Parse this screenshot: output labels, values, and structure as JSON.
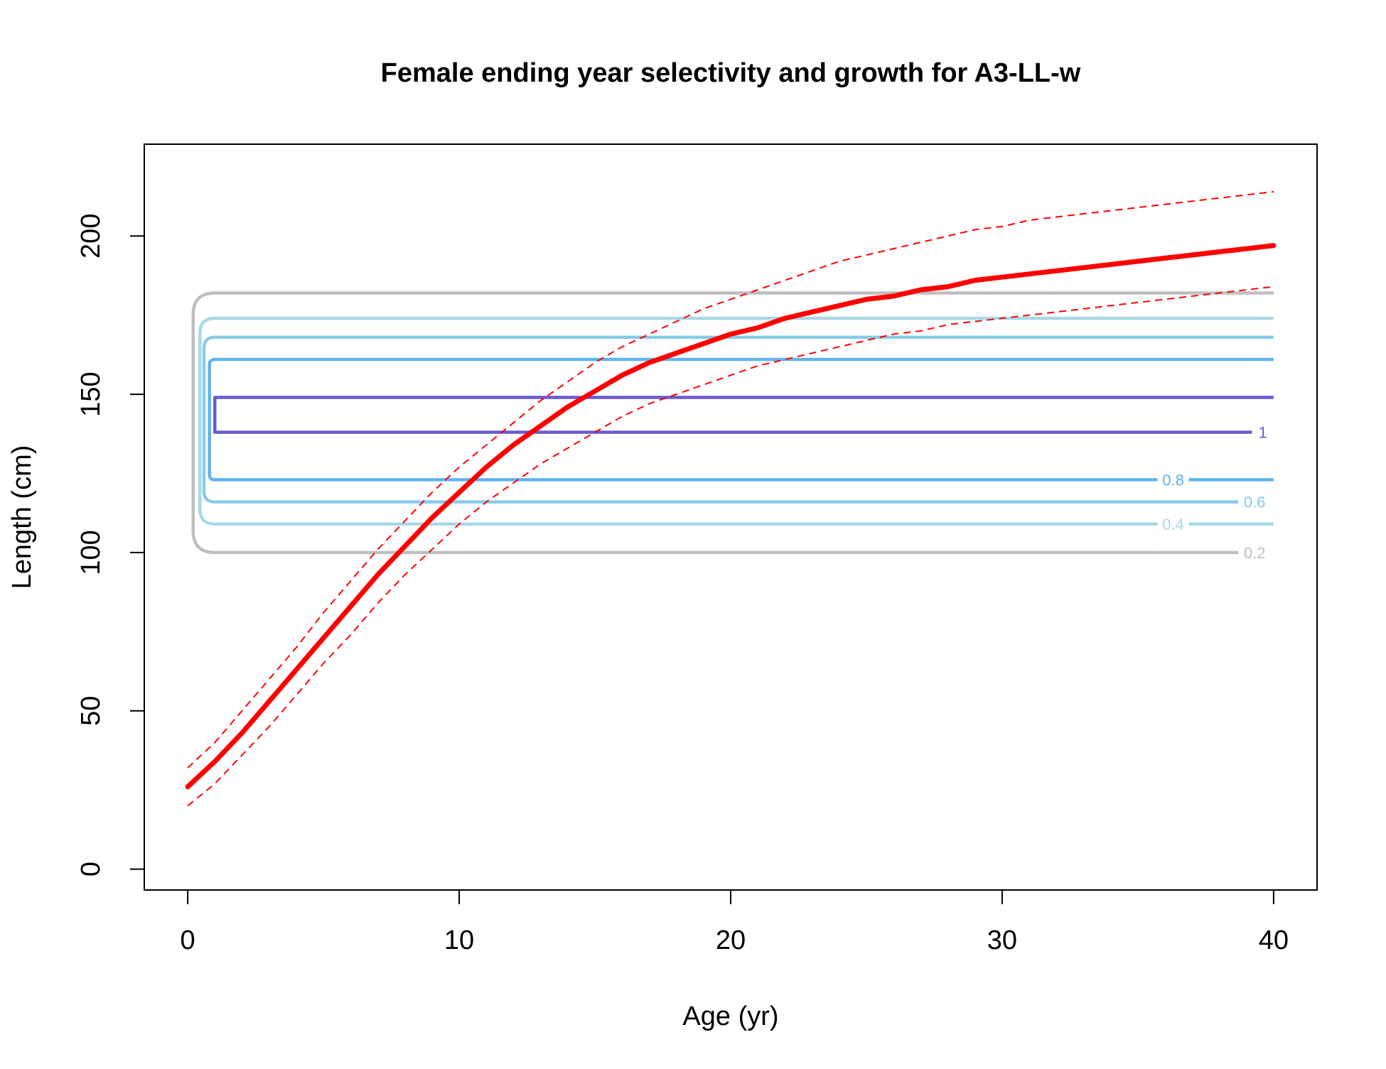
{
  "chart_data": {
    "type": "line",
    "title": "Female ending year selectivity and growth for A3-LL-w",
    "xlabel": "Age (yr)",
    "ylabel": "Length (cm)",
    "xlim": [
      -1.6,
      41.6
    ],
    "ylim": [
      -6.6,
      229
    ],
    "xticks": [
      0,
      10,
      20,
      30,
      40
    ],
    "yticks": [
      0,
      50,
      100,
      150,
      200
    ],
    "grid": false,
    "legend": "none",
    "growth": {
      "color": "#ff0000",
      "x": [
        0,
        1,
        2,
        3,
        4,
        5,
        6,
        7,
        8,
        9,
        10,
        11,
        12,
        13,
        14,
        15,
        16,
        17,
        18,
        19,
        20,
        21,
        22,
        23,
        24,
        25,
        26,
        27,
        28,
        29,
        30,
        31,
        32,
        33,
        34,
        35,
        36,
        37,
        38,
        39,
        40
      ],
      "mean": [
        26,
        34,
        43,
        53,
        63,
        73,
        83,
        93,
        102,
        111,
        119,
        127,
        134,
        140,
        146,
        151,
        156,
        160,
        163,
        166,
        169,
        171,
        174,
        176,
        178,
        180,
        181,
        183,
        184,
        186,
        187,
        188,
        189,
        190,
        191,
        192,
        193,
        194,
        195,
        196,
        197
      ],
      "upper": [
        32,
        40,
        50,
        60,
        70,
        81,
        91,
        101,
        110,
        119,
        127,
        134,
        141,
        148,
        154,
        160,
        165,
        169,
        173,
        177,
        180,
        183,
        186,
        189,
        192,
        194,
        196,
        198,
        200,
        202,
        203,
        205,
        206,
        207,
        208,
        209,
        210,
        211,
        212,
        213,
        214
      ],
      "lower": [
        20,
        27,
        36,
        45,
        55,
        65,
        74,
        84,
        93,
        101,
        109,
        116,
        122,
        128,
        133,
        138,
        143,
        147,
        150,
        153,
        156,
        159,
        161,
        163,
        165,
        167,
        169,
        170,
        172,
        173,
        174,
        175,
        176,
        177,
        178,
        179,
        180,
        181,
        182,
        183,
        184
      ]
    },
    "contours": [
      {
        "level": "0.2",
        "color": "#bebebe",
        "top": 182,
        "bottom": 100,
        "age_start": 1,
        "x_left": 0.2,
        "top_end": 40,
        "bottom_end": 38.7,
        "label_y": 100,
        "label_x": 39.3
      },
      {
        "level": "0.4",
        "color": "#a8d8e6",
        "top": 174,
        "bottom": 109,
        "age_start": 1,
        "x_left": 0.45,
        "top_end": 40,
        "bottom_end": 40,
        "label_y": 109,
        "label_x": 36.3
      },
      {
        "level": "0.6",
        "color": "#87cbea",
        "top": 168,
        "bottom": 116,
        "age_start": 1,
        "x_left": 0.6,
        "top_end": 40,
        "bottom_end": 38.7,
        "label_y": 116,
        "label_x": 39.3
      },
      {
        "level": "0.8",
        "color": "#5fb4f0",
        "top": 161,
        "bottom": 123,
        "age_start": 1,
        "x_left": 0.8,
        "top_end": 40,
        "bottom_end": 40,
        "label_y": 123,
        "label_x": 36.3
      },
      {
        "level": "1",
        "color": "#6a5acd",
        "top": 149,
        "bottom": 138,
        "age_start": 1,
        "x_left": 1,
        "top_end": 40,
        "bottom_end": 39.2,
        "label_y": 138,
        "label_x": 39.6
      }
    ]
  }
}
